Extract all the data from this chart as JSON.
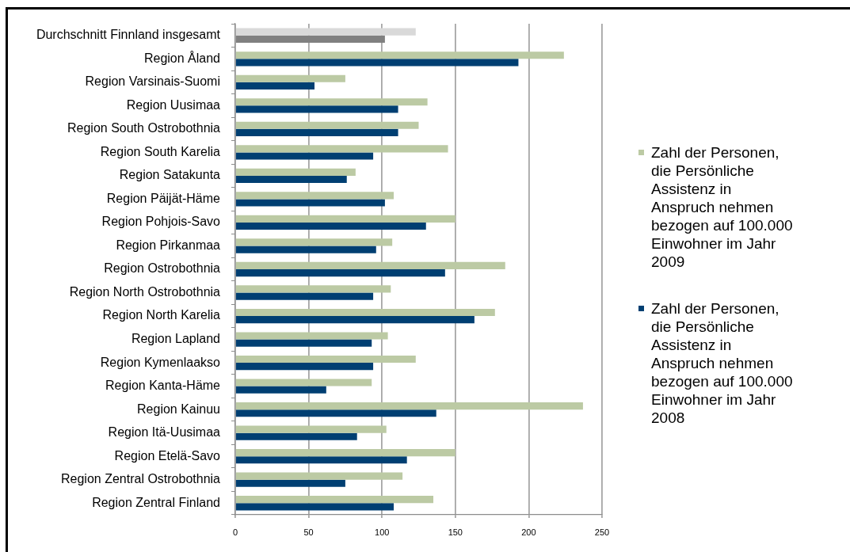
{
  "chart_data": {
    "type": "bar",
    "orientation": "horizontal",
    "categories": [
      "Durchschnitt Finnland insgesamt",
      "Region Åland",
      "Region Varsinais-Suomi",
      "Region Uusimaa",
      "Region South Ostrobothnia",
      "Region South Karelia",
      "Region Satakunta",
      "Region Päijät-Häme",
      "Region Pohjois-Savo",
      "Region Pirkanmaa",
      "Region Ostrobothnia",
      "Region North Ostrobothnia",
      "Region North Karelia",
      "Region Lapland",
      "Region Kymenlaakso",
      "Region Kanta-Häme",
      "Region Kainuu",
      "Region Itä-Uusimaa",
      "Region Etelä-Savo",
      "Region Zentral Ostrobothnia",
      "Region Zentral Finland"
    ],
    "series": [
      {
        "name": "Zahl der Personen, die Persönliche Assistenz in Anspruch nehmen bezogen auf 100.000 Einwohner im Jahr 2009",
        "color": "#bccaa4",
        "colors": [
          "#d9d9d9",
          "#bccaa4",
          "#bccaa4",
          "#bccaa4",
          "#bccaa4",
          "#bccaa4",
          "#bccaa4",
          "#bccaa4",
          "#bccaa4",
          "#bccaa4",
          "#bccaa4",
          "#bccaa4",
          "#bccaa4",
          "#bccaa4",
          "#bccaa4",
          "#bccaa4",
          "#bccaa4",
          "#bccaa4",
          "#bccaa4",
          "#bccaa4",
          "#bccaa4"
        ],
        "values": [
          123,
          224,
          75,
          131,
          125,
          145,
          82,
          108,
          150,
          107,
          184,
          106,
          177,
          104,
          123,
          93,
          237,
          103,
          150,
          114,
          135
        ]
      },
      {
        "name": "Zahl der Personen, die Persönliche Assistenz in Anspruch nehmen bezogen auf 100.000 Einwohner im Jahr 2008",
        "color": "#003f72",
        "colors": [
          "#808080",
          "#003f72",
          "#003f72",
          "#003f72",
          "#003f72",
          "#003f72",
          "#003f72",
          "#003f72",
          "#003f72",
          "#003f72",
          "#003f72",
          "#003f72",
          "#003f72",
          "#003f72",
          "#003f72",
          "#003f72",
          "#003f72",
          "#003f72",
          "#003f72",
          "#003f72",
          "#003f72"
        ],
        "values": [
          102,
          193,
          54,
          111,
          111,
          94,
          76,
          102,
          130,
          96,
          143,
          94,
          163,
          93,
          94,
          62,
          137,
          83,
          117,
          75,
          108
        ]
      }
    ],
    "xlim": [
      0,
      250
    ],
    "xticks": [
      0,
      50,
      100,
      150,
      200,
      250
    ],
    "grid": "x",
    "legend": "right"
  }
}
